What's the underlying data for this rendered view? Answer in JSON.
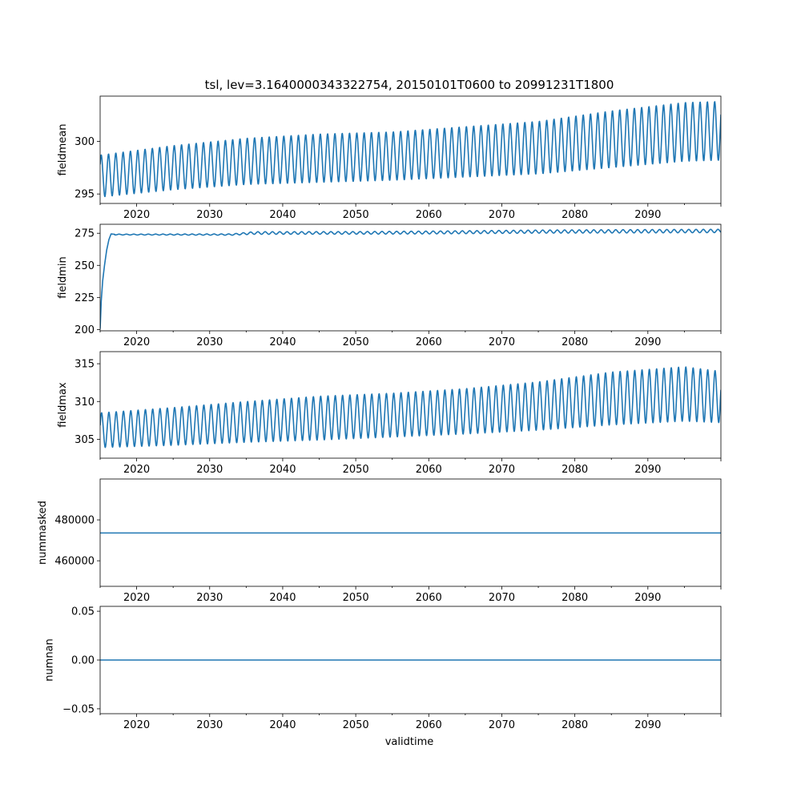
{
  "figure": {
    "title": "tsl, lev=3.1640000343322754, 20150101T0600 to 20991231T1800",
    "xlabel": "validtime",
    "series_color": "#1f77b4"
  },
  "chart_data": [
    {
      "type": "line",
      "name": "fieldmean",
      "ylabel": "fieldmean",
      "xlim": [
        2015.0,
        2100.0
      ],
      "ylim": [
        294.1,
        304.3
      ],
      "xticks": [
        2020,
        2030,
        2040,
        2050,
        2060,
        2070,
        2080,
        2090
      ],
      "xtick_labels": [
        "2020",
        "2030",
        "2040",
        "2050",
        "2060",
        "2070",
        "2080",
        "2090"
      ],
      "yticks": [
        295,
        300
      ],
      "ytick_labels": [
        "295",
        "300"
      ],
      "seasonal": {
        "start_year": 2015.0,
        "end_year": 2099.99,
        "samples_per_year": 24,
        "cycle_peak_phase": 0.15
      },
      "annual_mean": [
        {
          "year": 2015,
          "mid": 296.7,
          "amp": 2.0
        },
        {
          "year": 2025,
          "mid": 297.5,
          "amp": 2.1
        },
        {
          "year": 2035,
          "mid": 298.1,
          "amp": 2.2
        },
        {
          "year": 2045,
          "mid": 298.4,
          "amp": 2.3
        },
        {
          "year": 2055,
          "mid": 298.6,
          "amp": 2.3
        },
        {
          "year": 2065,
          "mid": 299.0,
          "amp": 2.4
        },
        {
          "year": 2075,
          "mid": 299.4,
          "amp": 2.5
        },
        {
          "year": 2085,
          "mid": 300.2,
          "amp": 2.7
        },
        {
          "year": 2095,
          "mid": 300.9,
          "amp": 2.8
        },
        {
          "year": 2100,
          "mid": 301.0,
          "amp": 2.8
        }
      ]
    },
    {
      "type": "line",
      "name": "fieldmin",
      "ylabel": "fieldmin",
      "xlim": [
        2015.0,
        2100.0
      ],
      "ylim": [
        199.0,
        282.0
      ],
      "xticks": [
        2020,
        2030,
        2040,
        2050,
        2060,
        2070,
        2080,
        2090
      ],
      "xtick_labels": [
        "2020",
        "2030",
        "2040",
        "2050",
        "2060",
        "2070",
        "2080",
        "2090"
      ],
      "yticks": [
        200,
        225,
        250,
        275
      ],
      "ytick_labels": [
        "200",
        "225",
        "250",
        "275"
      ],
      "spinup": [
        {
          "x": 2015.0,
          "y": 200.5
        },
        {
          "x": 2015.15,
          "y": 222.0
        },
        {
          "x": 2015.35,
          "y": 238.0
        },
        {
          "x": 2015.6,
          "y": 250.0
        },
        {
          "x": 2015.9,
          "y": 262.0
        },
        {
          "x": 2016.2,
          "y": 270.0
        },
        {
          "x": 2016.5,
          "y": 274.5
        },
        {
          "x": 2017.0,
          "y": 274.2
        }
      ],
      "seasonal": {
        "start_year": 2017.0,
        "end_year": 2099.99,
        "samples_per_year": 24,
        "cycle_peak_phase": 0.6
      },
      "annual_mean": [
        {
          "year": 2017,
          "mid": 274.0,
          "amp": 0.3
        },
        {
          "year": 2033,
          "mid": 274.0,
          "amp": 0.5
        },
        {
          "year": 2036,
          "mid": 275.2,
          "amp": 1.0
        },
        {
          "year": 2050,
          "mid": 275.3,
          "amp": 1.0
        },
        {
          "year": 2060,
          "mid": 275.6,
          "amp": 1.1
        },
        {
          "year": 2075,
          "mid": 276.3,
          "amp": 1.2
        },
        {
          "year": 2090,
          "mid": 276.6,
          "amp": 1.3
        },
        {
          "year": 2100,
          "mid": 276.8,
          "amp": 1.3
        }
      ]
    },
    {
      "type": "line",
      "name": "fieldmax",
      "ylabel": "fieldmax",
      "xlim": [
        2015.0,
        2100.0
      ],
      "ylim": [
        302.5,
        316.6
      ],
      "xticks": [
        2020,
        2030,
        2040,
        2050,
        2060,
        2070,
        2080,
        2090
      ],
      "xtick_labels": [
        "2020",
        "2030",
        "2040",
        "2050",
        "2060",
        "2070",
        "2080",
        "2090"
      ],
      "yticks": [
        305,
        310,
        315
      ],
      "ytick_labels": [
        "305",
        "310",
        "315"
      ],
      "seasonal": {
        "start_year": 2015.0,
        "end_year": 2099.99,
        "samples_per_year": 24,
        "cycle_peak_phase": 0.2
      },
      "annual_mean": [
        {
          "year": 2015,
          "mid": 306.2,
          "amp": 2.3
        },
        {
          "year": 2025,
          "mid": 306.7,
          "amp": 2.5
        },
        {
          "year": 2035,
          "mid": 307.3,
          "amp": 2.7
        },
        {
          "year": 2045,
          "mid": 307.8,
          "amp": 2.9
        },
        {
          "year": 2055,
          "mid": 308.2,
          "amp": 2.9
        },
        {
          "year": 2065,
          "mid": 308.7,
          "amp": 3.0
        },
        {
          "year": 2075,
          "mid": 309.4,
          "amp": 3.2
        },
        {
          "year": 2085,
          "mid": 310.4,
          "amp": 3.5
        },
        {
          "year": 2095,
          "mid": 311.0,
          "amp": 3.6
        },
        {
          "year": 2100,
          "mid": 310.6,
          "amp": 3.4
        }
      ]
    },
    {
      "type": "line",
      "name": "nummasked",
      "ylabel": "nummasked",
      "xlim": [
        2015.0,
        2100.0
      ],
      "ylim": [
        447500,
        500000
      ],
      "xticks": [
        2020,
        2030,
        2040,
        2050,
        2060,
        2070,
        2080,
        2090
      ],
      "xtick_labels": [
        "2020",
        "2030",
        "2040",
        "2050",
        "2060",
        "2070",
        "2080",
        "2090"
      ],
      "yticks": [
        460000,
        480000
      ],
      "ytick_labels": [
        "460000",
        "480000"
      ],
      "constant": 473600
    },
    {
      "type": "line",
      "name": "numnan",
      "ylabel": "numnan",
      "xlim": [
        2015.0,
        2100.0
      ],
      "ylim": [
        -0.055,
        0.055
      ],
      "xticks": [
        2020,
        2030,
        2040,
        2050,
        2060,
        2070,
        2080,
        2090
      ],
      "xtick_labels": [
        "2020",
        "2030",
        "2040",
        "2050",
        "2060",
        "2070",
        "2080",
        "2090"
      ],
      "yticks": [
        -0.05,
        0.0,
        0.05
      ],
      "ytick_labels": [
        "−0.05",
        "0.00",
        "0.05"
      ],
      "constant": 0.0
    }
  ]
}
